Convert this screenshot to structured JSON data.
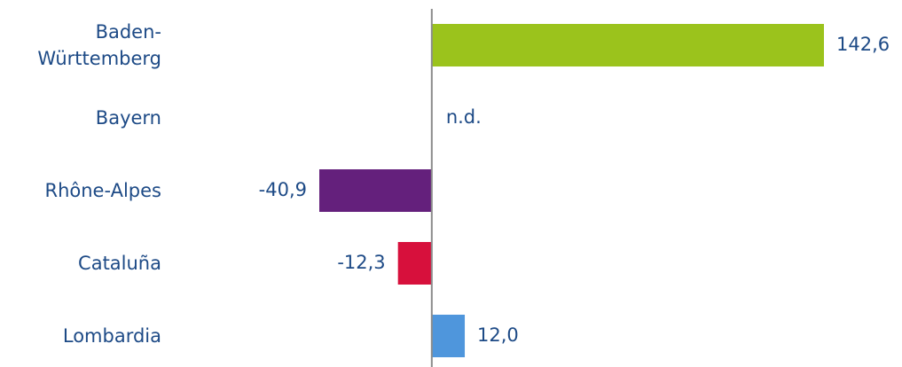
{
  "chart_data": {
    "type": "hbar",
    "categories": [
      "Baden-Württemberg",
      "Bayern",
      "Rhône-Alpes",
      "Cataluña",
      "Lombardia"
    ],
    "values": [
      142.6,
      null,
      -40.9,
      -12.3,
      12.0
    ],
    "value_labels": [
      "142,6",
      "n.d.",
      "-40,9",
      "-12,3",
      "12,0"
    ],
    "colors": [
      "#9bc31c",
      "#9bc31c",
      "#64207c",
      "#d7103c",
      "#4f96dc"
    ]
  }
}
